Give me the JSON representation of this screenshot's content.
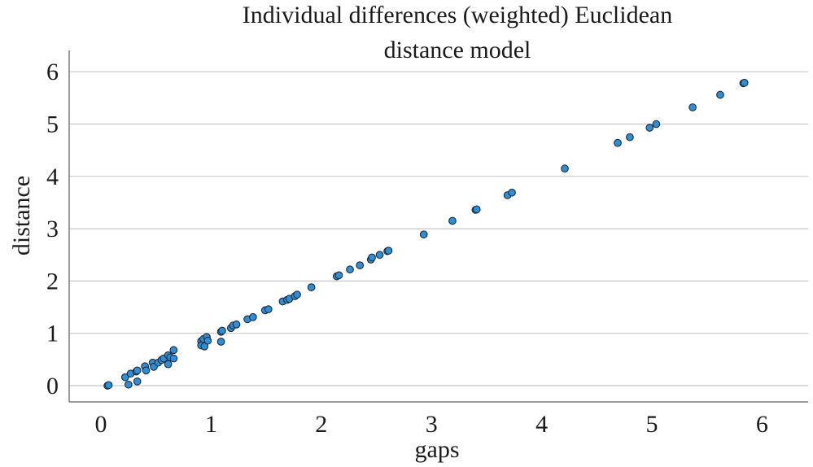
{
  "chart_data": {
    "type": "scatter",
    "title_line1": "Individual differences (weighted) Euclidean",
    "title_line2": "distance model",
    "xlabel": "gaps",
    "ylabel": "distance",
    "xlim": [
      -0.25,
      6.3
    ],
    "ylim": [
      -0.3,
      6.3
    ],
    "xticks": [
      0,
      1,
      2,
      3,
      4,
      5,
      6
    ],
    "yticks": [
      0,
      1,
      2,
      3,
      4,
      5,
      6
    ],
    "grid": "horizontal",
    "point_color": "#2e8fd6",
    "points": [
      [
        0.06,
        0.0
      ],
      [
        0.07,
        0.01
      ],
      [
        0.22,
        0.16
      ],
      [
        0.25,
        0.02
      ],
      [
        0.27,
        0.23
      ],
      [
        0.32,
        0.27
      ],
      [
        0.33,
        0.29
      ],
      [
        0.33,
        0.08
      ],
      [
        0.4,
        0.37
      ],
      [
        0.41,
        0.29
      ],
      [
        0.47,
        0.44
      ],
      [
        0.48,
        0.36
      ],
      [
        0.52,
        0.44
      ],
      [
        0.55,
        0.49
      ],
      [
        0.57,
        0.52
      ],
      [
        0.61,
        0.58
      ],
      [
        0.61,
        0.41
      ],
      [
        0.63,
        0.54
      ],
      [
        0.66,
        0.68
      ],
      [
        0.66,
        0.52
      ],
      [
        0.91,
        0.85
      ],
      [
        0.91,
        0.77
      ],
      [
        0.93,
        0.89
      ],
      [
        0.94,
        0.75
      ],
      [
        0.96,
        0.93
      ],
      [
        0.97,
        0.86
      ],
      [
        1.09,
        1.03
      ],
      [
        1.1,
        1.05
      ],
      [
        1.09,
        0.84
      ],
      [
        1.18,
        1.1
      ],
      [
        1.2,
        1.15
      ],
      [
        1.23,
        1.17
      ],
      [
        1.33,
        1.27
      ],
      [
        1.38,
        1.31
      ],
      [
        1.49,
        1.44
      ],
      [
        1.52,
        1.46
      ],
      [
        1.65,
        1.61
      ],
      [
        1.69,
        1.64
      ],
      [
        1.71,
        1.66
      ],
      [
        1.76,
        1.71
      ],
      [
        1.78,
        1.74
      ],
      [
        1.91,
        1.88
      ],
      [
        2.14,
        2.09
      ],
      [
        2.16,
        2.11
      ],
      [
        2.26,
        2.22
      ],
      [
        2.35,
        2.3
      ],
      [
        2.45,
        2.41
      ],
      [
        2.46,
        2.45
      ],
      [
        2.53,
        2.5
      ],
      [
        2.6,
        2.57
      ],
      [
        2.61,
        2.58
      ],
      [
        2.93,
        2.89
      ],
      [
        3.19,
        3.15
      ],
      [
        3.4,
        3.36
      ],
      [
        3.41,
        3.37
      ],
      [
        3.69,
        3.64
      ],
      [
        3.73,
        3.69
      ],
      [
        4.21,
        4.15
      ],
      [
        4.69,
        4.64
      ],
      [
        4.8,
        4.75
      ],
      [
        4.98,
        4.93
      ],
      [
        5.04,
        5.0
      ],
      [
        5.37,
        5.32
      ],
      [
        5.62,
        5.56
      ],
      [
        5.83,
        5.78
      ],
      [
        5.84,
        5.79
      ]
    ]
  }
}
